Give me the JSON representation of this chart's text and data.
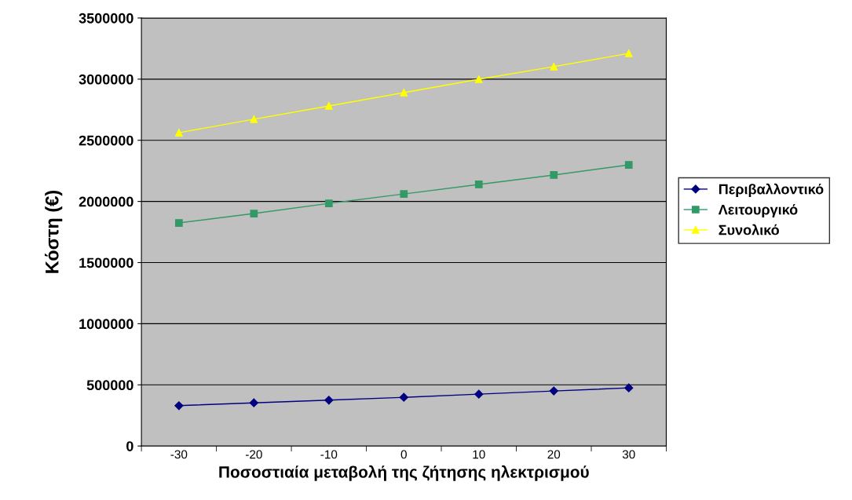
{
  "chart_data": {
    "type": "line",
    "xlabel": "Ποσοστιαία μεταβολή της ζήτησης ηλεκτρισμού",
    "ylabel": "Κόστη (€)",
    "categories": [
      "-30",
      "-20",
      "-10",
      "0",
      "10",
      "20",
      "30"
    ],
    "series": [
      {
        "name": "Περιβαλλοντικό",
        "color": "#000080",
        "marker": "diamond",
        "values": [
          330000,
          353000,
          375000,
          398000,
          424000,
          450000,
          475000
        ]
      },
      {
        "name": "Λειτουργικό",
        "color": "#339966",
        "marker": "square",
        "values": [
          1824000,
          1901000,
          1984000,
          2061000,
          2139000,
          2216000,
          2299000
        ]
      },
      {
        "name": "Συνολικό",
        "color": "#ffff00",
        "marker": "triangle",
        "values": [
          2562000,
          2672000,
          2781000,
          2890000,
          2999000,
          3102000,
          3211000
        ]
      }
    ],
    "ylim": [
      0,
      3500000
    ],
    "yticks": [
      0,
      500000,
      1000000,
      1500000,
      2000000,
      2500000,
      3000000,
      3500000
    ],
    "grid": "y",
    "legend": "right",
    "line_style": "solid"
  }
}
